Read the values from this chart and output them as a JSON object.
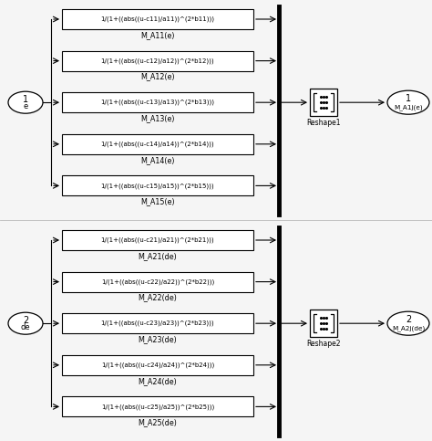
{
  "bg_color": "#f5f5f5",
  "fig_width": 4.74,
  "fig_height": 4.83,
  "dpi": 100,
  "top_blocks": [
    {
      "formula": "1/(1+((abs((u-c11)/a11))^(2*b11)))",
      "label": "M_A11(e)"
    },
    {
      "formula": "1/(1+((abs((u-c12)/a12))^(2*b12)))",
      "label": "M_A12(e)"
    },
    {
      "formula": "1/(1+((abs((u-c13)/a13))^(2*b13)))",
      "label": "M_A13(e)"
    },
    {
      "formula": "1/(1+((abs((u-c14)/a14))^(2*b14)))",
      "label": "M_A14(e)"
    },
    {
      "formula": "1/(1+((abs((u-c15)/a15))^(2*b15)))",
      "label": "M_A15(e)"
    }
  ],
  "bottom_blocks": [
    {
      "formula": "1/(1+((abs((u-c21)/a21))^(2*b21)))",
      "label": "M_A21(de)"
    },
    {
      "formula": "1/(1+((abs((u-c22)/a22))^(2*b22)))",
      "label": "M_A22(de)"
    },
    {
      "formula": "1/(1+((abs((u-c23)/a23))^(2*b23)))",
      "label": "M_A23(de)"
    },
    {
      "formula": "1/(1+((abs((u-c24)/a24))^(2*b24)))",
      "label": "M_A24(de)"
    },
    {
      "formula": "1/(1+((abs((u-c25)/a25))^(2*b25)))",
      "label": "M_A25(de)"
    }
  ],
  "reshape1_label": "Reshape1",
  "reshape2_label": "Reshape2",
  "out1_num": "1",
  "out1_name": "M_A1j(e)",
  "out2_num": "2",
  "out2_name": "M_A2j(de)",
  "in1_num": "1",
  "in1_name": "e",
  "in2_num": "2",
  "in2_name": "de",
  "block_color": "#ffffff",
  "block_edge_color": "#000000",
  "text_color": "#000000",
  "line_color": "#000000",
  "formula_fontsize": 5.0,
  "label_fontsize": 5.8,
  "io_fontsize": 7.0,
  "reshape_fontsize": 5.5,
  "out_name_fontsize": 5.2
}
